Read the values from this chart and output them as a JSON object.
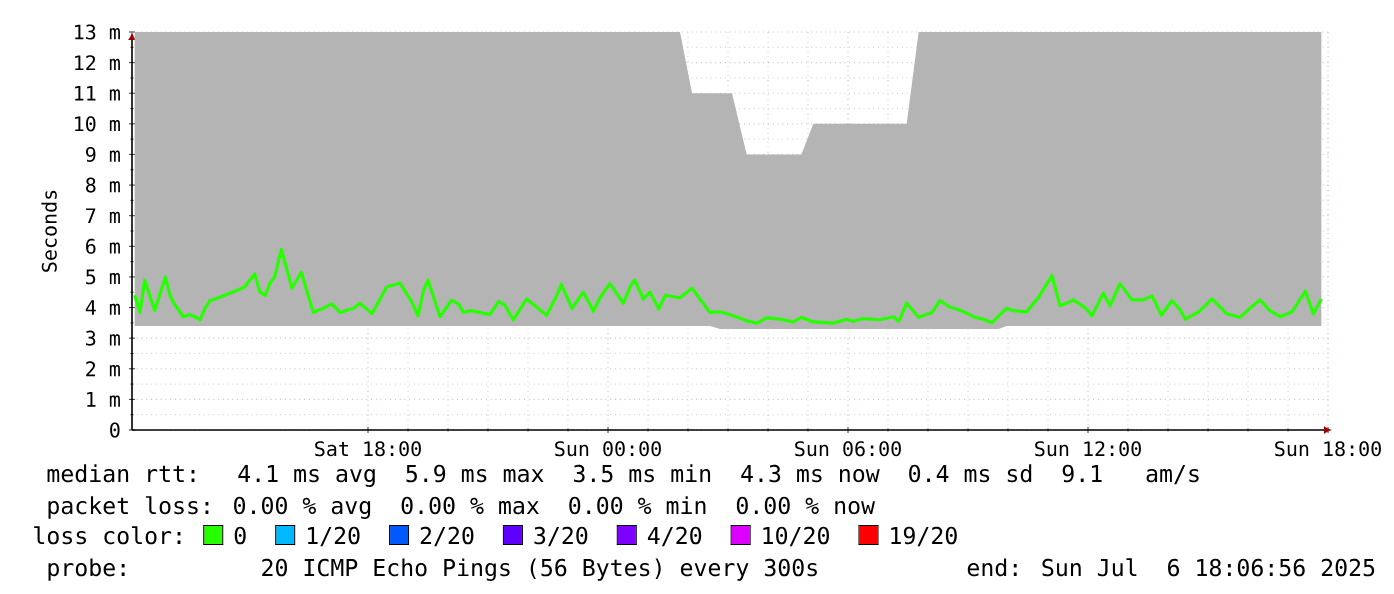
{
  "chart_data": {
    "type": "line",
    "ylabel": "Seconds",
    "xlim": [
      "2025-07-05T12:06",
      "2025-07-06T18:06"
    ],
    "xticks": [
      {
        "value": "2025-07-05T18:00",
        "label": "Sat 18:00"
      },
      {
        "value": "2025-07-06T00:00",
        "label": "Sun 00:00"
      },
      {
        "value": "2025-07-06T06:00",
        "label": "Sun 06:00"
      },
      {
        "value": "2025-07-06T12:00",
        "label": "Sun 12:00"
      },
      {
        "value": "2025-07-06T18:00",
        "label": "Sun 18:00"
      }
    ],
    "ylim": [
      0,
      13
    ],
    "yticks": [
      0,
      {
        "value": 1,
        "label": "1 m"
      },
      {
        "value": 2,
        "label": "2 m"
      },
      {
        "value": 3,
        "label": "3 m"
      },
      {
        "value": 4,
        "label": "4 m"
      },
      {
        "value": 5,
        "label": "5 m"
      },
      {
        "value": 6,
        "label": "6 m"
      },
      {
        "value": 7,
        "label": "7 m"
      },
      {
        "value": 8,
        "label": "8 m"
      },
      {
        "value": 9,
        "label": "9 m"
      },
      {
        "value": 10,
        "label": "10 m"
      },
      {
        "value": 11,
        "label": "11 m"
      },
      {
        "value": 12,
        "label": "12 m"
      },
      {
        "value": 13,
        "label": "13 m"
      }
    ],
    "grid": true,
    "legend": "bottom",
    "legend_title": "loss color:",
    "series": [
      {
        "name": "0",
        "color": "#26ff00",
        "x": [
          "2025-07-05T12:10",
          "2025-07-05T12:18",
          "2025-07-05T12:25",
          "2025-07-05T12:33",
          "2025-07-05T12:40",
          "2025-07-05T12:56",
          "2025-07-05T13:03",
          "2025-07-05T13:10",
          "2025-07-05T13:23",
          "2025-07-05T13:33",
          "2025-07-05T13:40",
          "2025-07-05T13:48",
          "2025-07-05T13:56",
          "2025-07-05T14:03",
          "2025-07-05T14:11",
          "2025-07-05T14:33",
          "2025-07-05T14:55",
          "2025-07-05T15:03",
          "2025-07-05T15:10",
          "2025-07-05T15:18",
          "2025-07-05T15:26",
          "2025-07-05T15:33",
          "2025-07-05T15:40",
          "2025-07-05T15:50",
          "2025-07-05T16:06",
          "2025-07-05T16:13",
          "2025-07-05T16:20",
          "2025-07-05T16:38",
          "2025-07-05T16:50",
          "2025-07-05T17:06",
          "2025-07-05T17:18",
          "2025-07-05T17:30",
          "2025-07-05T17:38",
          "2025-07-05T17:48",
          "2025-07-05T18:06",
          "2025-07-05T18:28",
          "2025-07-05T18:48",
          "2025-07-05T19:06",
          "2025-07-05T19:15",
          "2025-07-05T19:23",
          "2025-07-05T19:30",
          "2025-07-05T19:48",
          "2025-07-05T20:05",
          "2025-07-05T20:16",
          "2025-07-05T20:23",
          "2025-07-05T20:33",
          "2025-07-05T20:48",
          "2025-07-05T21:03",
          "2025-07-05T21:16",
          "2025-07-05T21:26",
          "2025-07-05T21:38",
          "2025-07-05T21:58",
          "2025-07-05T22:28",
          "2025-07-05T22:43",
          "2025-07-05T22:50",
          "2025-07-05T23:06",
          "2025-07-05T23:23",
          "2025-07-05T23:33",
          "2025-07-05T23:38",
          "2025-07-05T23:48",
          "2025-07-06T00:03",
          "2025-07-06T00:23",
          "2025-07-06T00:33",
          "2025-07-06T00:40",
          "2025-07-06T00:53",
          "2025-07-06T01:03",
          "2025-07-06T01:16",
          "2025-07-06T01:26",
          "2025-07-06T01:48",
          "2025-07-06T02:06",
          "2025-07-06T02:33",
          "2025-07-06T02:48",
          "2025-07-06T03:06",
          "2025-07-06T03:28",
          "2025-07-06T03:43",
          "2025-07-06T03:58",
          "2025-07-06T04:18",
          "2025-07-06T04:38",
          "2025-07-06T04:50",
          "2025-07-06T05:08",
          "2025-07-06T05:38",
          "2025-07-06T05:58",
          "2025-07-06T06:08",
          "2025-07-06T06:23",
          "2025-07-06T06:48",
          "2025-07-06T07:08",
          "2025-07-06T07:16",
          "2025-07-06T07:28",
          "2025-07-06T07:46",
          "2025-07-06T08:06",
          "2025-07-06T08:18",
          "2025-07-06T08:33",
          "2025-07-06T08:43",
          "2025-07-06T08:56",
          "2025-07-06T09:08",
          "2025-07-06T09:23",
          "2025-07-06T09:36",
          "2025-07-06T09:46",
          "2025-07-06T09:58",
          "2025-07-06T10:08",
          "2025-07-06T10:28",
          "2025-07-06T10:46",
          "2025-07-06T11:06",
          "2025-07-06T11:18",
          "2025-07-06T11:26",
          "2025-07-06T11:38",
          "2025-07-06T11:56",
          "2025-07-06T12:06",
          "2025-07-06T12:23",
          "2025-07-06T12:33",
          "2025-07-06T12:48",
          "2025-07-06T13:06",
          "2025-07-06T13:23",
          "2025-07-06T13:36",
          "2025-07-06T13:50",
          "2025-07-06T14:06",
          "2025-07-06T14:18",
          "2025-07-06T14:26",
          "2025-07-06T14:46",
          "2025-07-06T15:06",
          "2025-07-06T15:28",
          "2025-07-06T15:48",
          "2025-07-06T16:06",
          "2025-07-06T16:18",
          "2025-07-06T16:33",
          "2025-07-06T16:48",
          "2025-07-06T17:06",
          "2025-07-06T17:26",
          "2025-07-06T17:38",
          "2025-07-06T17:50"
        ],
        "values": [
          4.4,
          3.84,
          4.9,
          4.36,
          3.9,
          5.0,
          4.4,
          4.1,
          3.7,
          3.77,
          3.7,
          3.6,
          4.0,
          4.23,
          4.28,
          4.47,
          4.67,
          4.9,
          5.1,
          4.5,
          4.4,
          4.8,
          5.0,
          5.9,
          4.63,
          4.9,
          5.15,
          3.84,
          3.95,
          4.12,
          3.84,
          3.93,
          3.97,
          4.14,
          3.8,
          4.67,
          4.8,
          4.17,
          3.73,
          4.54,
          4.9,
          3.7,
          4.23,
          4.12,
          3.84,
          3.9,
          3.84,
          3.77,
          4.2,
          4.06,
          3.6,
          4.28,
          3.75,
          4.39,
          4.76,
          3.97,
          4.5,
          4.1,
          3.88,
          4.32,
          4.78,
          4.14,
          4.67,
          4.9,
          4.28,
          4.5,
          3.95,
          4.4,
          4.32,
          4.63,
          3.84,
          3.86,
          3.75,
          3.57,
          3.49,
          3.66,
          3.62,
          3.53,
          3.68,
          3.53,
          3.49,
          3.62,
          3.55,
          3.64,
          3.6,
          3.7,
          3.55,
          4.14,
          3.68,
          3.84,
          4.23,
          4.01,
          3.95,
          3.84,
          3.7,
          3.62,
          3.51,
          3.73,
          3.97,
          3.9,
          3.86,
          4.34,
          5.04,
          4.06,
          4.12,
          4.25,
          3.99,
          3.73,
          4.47,
          4.06,
          4.78,
          4.25,
          4.25,
          4.39,
          3.75,
          4.23,
          3.93,
          3.62,
          3.86,
          4.28,
          3.8,
          3.68,
          4.04,
          4.25,
          3.9,
          3.7,
          3.86,
          4.54,
          3.8,
          4.28
        ],
        "lower": [
          3.4,
          3.4,
          3.4,
          3.4,
          3.4,
          3.4,
          3.4,
          3.4,
          3.4,
          3.4,
          3.4,
          3.4,
          3.4,
          3.4,
          3.4,
          3.4,
          3.4,
          3.4,
          3.4,
          3.4,
          3.4,
          3.4,
          3.4,
          3.4,
          3.4,
          3.4,
          3.4,
          3.4,
          3.4,
          3.4,
          3.4,
          3.4,
          3.4,
          3.4,
          3.4,
          3.4,
          3.4,
          3.4,
          3.4,
          3.4,
          3.4,
          3.4,
          3.4,
          3.4,
          3.4,
          3.4,
          3.4,
          3.4,
          3.4,
          3.4,
          3.4,
          3.4,
          3.4,
          3.4,
          3.4,
          3.4,
          3.4,
          3.4,
          3.4,
          3.4,
          3.4,
          3.4,
          3.4,
          3.4,
          3.4,
          3.4,
          3.4,
          3.4,
          3.4,
          3.4,
          3.4,
          3.3,
          3.3,
          3.3,
          3.3,
          3.3,
          3.3,
          3.3,
          3.3,
          3.3,
          3.3,
          3.3,
          3.3,
          3.3,
          3.3,
          3.3,
          3.3,
          3.3,
          3.3,
          3.3,
          3.3,
          3.3,
          3.3,
          3.3,
          3.3,
          3.3,
          3.3,
          3.3,
          3.4,
          3.4,
          3.4,
          3.4,
          3.4,
          3.4,
          3.4,
          3.4,
          3.4,
          3.4,
          3.4,
          3.4,
          3.4,
          3.4,
          3.4,
          3.4,
          3.4,
          3.4,
          3.4,
          3.4,
          3.4,
          3.4,
          3.4,
          3.4,
          3.4,
          3.4,
          3.4,
          3.4,
          3.4,
          3.4,
          3.4,
          3.4
        ],
        "upper": [
          13,
          13,
          13,
          13,
          13,
          13,
          13,
          13,
          13,
          13,
          13,
          13,
          13,
          13,
          13,
          13,
          13,
          13,
          13,
          13,
          13,
          13,
          13,
          13,
          13,
          13,
          13,
          13,
          13,
          13,
          13,
          13,
          13,
          13,
          13,
          13,
          13,
          13,
          13,
          13,
          13,
          13,
          13,
          13,
          13,
          13,
          13,
          13,
          13,
          13,
          13,
          13,
          13,
          13,
          13,
          13,
          13,
          13,
          13,
          13,
          13,
          13,
          13,
          13,
          13,
          13,
          13,
          13,
          13,
          11,
          11,
          11,
          11,
          9,
          9,
          9,
          9,
          9,
          9,
          10,
          10,
          10,
          10,
          10,
          10,
          10,
          10,
          10,
          13,
          13,
          13,
          13,
          13,
          13,
          13,
          13,
          13,
          13,
          13,
          13,
          13,
          13,
          13,
          13,
          13,
          13,
          13,
          13,
          13,
          13,
          13,
          13,
          13,
          13,
          13,
          13,
          13,
          13,
          13,
          13,
          13,
          13,
          13,
          13,
          13,
          13,
          13,
          13,
          13,
          13
        ]
      },
      {
        "name": "1/20",
        "color": "#00b8ff"
      },
      {
        "name": "2/20",
        "color": "#0059ff"
      },
      {
        "name": "3/20",
        "color": "#5e00ff"
      },
      {
        "name": "4/20",
        "color": "#7e00ff"
      },
      {
        "name": "10/20",
        "color": "#dd00ff"
      },
      {
        "name": "19/20",
        "color": "#ff0000"
      }
    ],
    "annotations": [
      "median rtt:  4.1 ms avg  5.9 ms max  3.5 ms min  4.3 ms now  0.4 ms sd  9.1   am/s",
      "packet loss: 0.00 % avg  0.00 % max  0.00 % min  0.00 % now",
      "probe:       20 ICMP Echo Pings (56 Bytes) every 300s",
      "end: Sun Jul  6 18:06:56 2025"
    ]
  }
}
